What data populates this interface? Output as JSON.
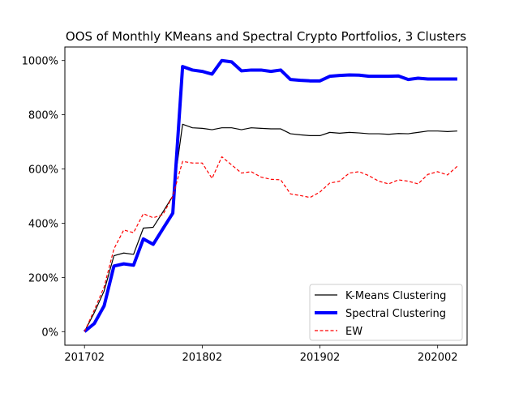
{
  "chart_data": {
    "type": "line",
    "title": "OOS of Monthly KMeans and Spectral Crypto Portfolios, 3 Clusters",
    "xlabel": "",
    "ylabel": "",
    "x_tick_labels": [
      "201702",
      "201802",
      "201902",
      "202002"
    ],
    "y_tick_labels": [
      "0%",
      "200%",
      "400%",
      "600%",
      "800%",
      "1000%"
    ],
    "y_tick_values": [
      0,
      200,
      400,
      600,
      800,
      1000
    ],
    "xlim": [
      -2,
      39
    ],
    "ylim": [
      -50,
      1050
    ],
    "grid": false,
    "legend_position": "lower-right",
    "x": [
      "201702",
      "201703",
      "201704",
      "201705",
      "201706",
      "201707",
      "201708",
      "201709",
      "201710",
      "201711",
      "201712",
      "201801",
      "201802",
      "201803",
      "201804",
      "201805",
      "201806",
      "201807",
      "201808",
      "201809",
      "201810",
      "201811",
      "201812",
      "201901",
      "201902",
      "201903",
      "201904",
      "201905",
      "201906",
      "201907",
      "201908",
      "201909",
      "201910",
      "201911",
      "201912",
      "202001",
      "202002",
      "202003",
      "202004"
    ],
    "series": [
      {
        "name": "K-Means Clustering",
        "color": "#000000",
        "style": "solid",
        "values": [
          0,
          70,
          150,
          280,
          290,
          285,
          382,
          385,
          442,
          500,
          765,
          752,
          750,
          745,
          752,
          752,
          745,
          752,
          750,
          748,
          748,
          730,
          726,
          723,
          723,
          735,
          732,
          735,
          733,
          730,
          730,
          728,
          731,
          730,
          735,
          740,
          740,
          738,
          740
        ]
      },
      {
        "name": "Spectral Clustering",
        "color": "#0000ff",
        "style": "solid",
        "values": [
          0,
          30,
          95,
          242,
          250,
          245,
          342,
          322,
          380,
          437,
          978,
          965,
          960,
          950,
          1000,
          995,
          962,
          965,
          965,
          960,
          965,
          930,
          927,
          925,
          925,
          942,
          945,
          947,
          946,
          942,
          942,
          942,
          943,
          930,
          935,
          932,
          932,
          932,
          932
        ]
      },
      {
        "name": "EW",
        "color": "#ff0000",
        "style": "dashed",
        "values": [
          0,
          80,
          165,
          305,
          375,
          365,
          435,
          420,
          432,
          500,
          628,
          622,
          622,
          565,
          645,
          615,
          585,
          590,
          570,
          562,
          560,
          508,
          502,
          495,
          515,
          548,
          555,
          585,
          590,
          575,
          555,
          545,
          560,
          555,
          545,
          580,
          590,
          578,
          610
        ]
      }
    ]
  }
}
